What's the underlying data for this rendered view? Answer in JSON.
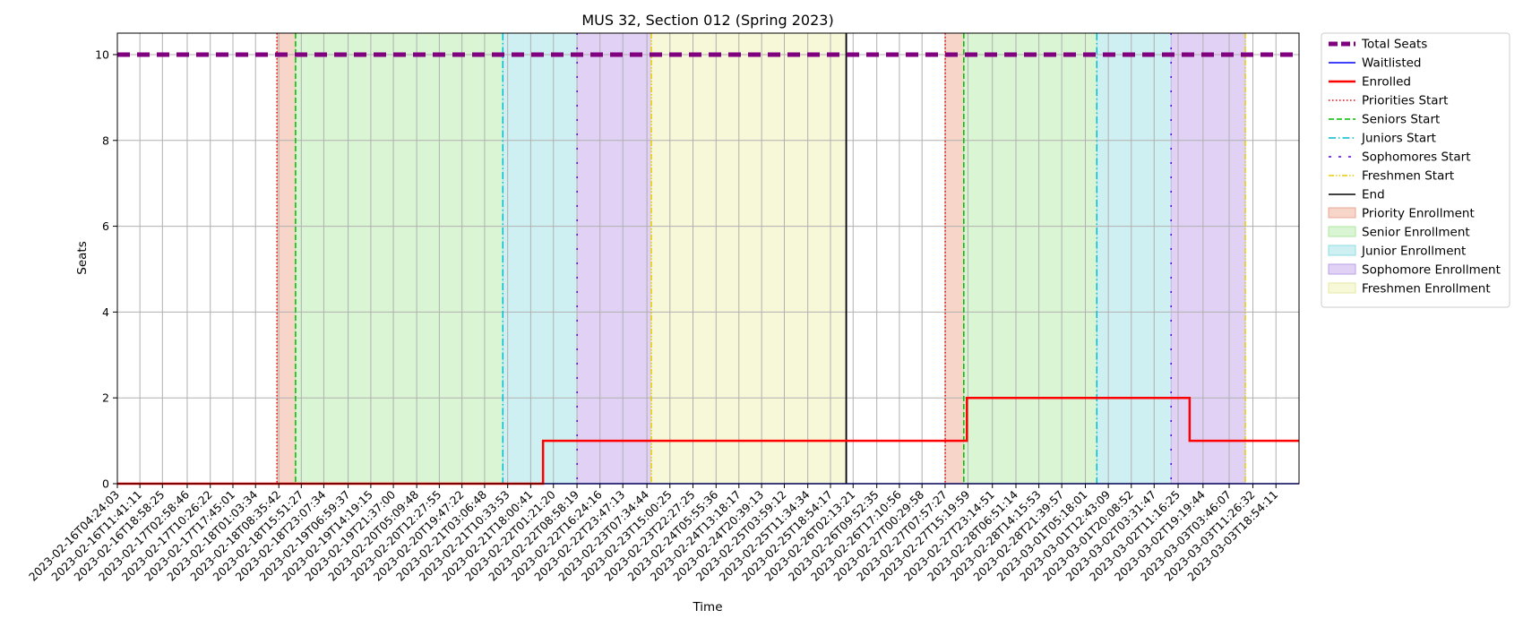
{
  "chart_data": {
    "type": "line",
    "title": "MUS 32, Section 012 (Spring 2023)",
    "xlabel": "Time",
    "ylabel": "Seats",
    "x_scale": "time",
    "xlim": [
      "2023-02-16T04:24:03",
      "2023-03-04T02:21:40"
    ],
    "ylim": [
      0,
      10.5
    ],
    "yticks": [
      0,
      2,
      4,
      6,
      8,
      10
    ],
    "grid": true,
    "legend_position": "outside-right-top",
    "xtick_labels": [
      "2023-02-16T04:24:03",
      "2023-02-16T11:41:11",
      "2023-02-16T18:58:25",
      "2023-02-17T02:58:46",
      "2023-02-17T10:26:22",
      "2023-02-17T17:45:01",
      "2023-02-18T01:03:34",
      "2023-02-18T08:35:42",
      "2023-02-18T15:51:27",
      "2023-02-18T23:07:34",
      "2023-02-19T06:59:37",
      "2023-02-19T14:19:15",
      "2023-02-19T21:37:00",
      "2023-02-20T05:09:48",
      "2023-02-20T12:27:55",
      "2023-02-20T19:47:22",
      "2023-02-21T03:06:48",
      "2023-02-21T10:33:53",
      "2023-02-21T18:00:41",
      "2023-02-22T01:21:20",
      "2023-02-22T08:58:19",
      "2023-02-22T16:24:16",
      "2023-02-22T23:47:13",
      "2023-02-23T07:34:44",
      "2023-02-23T15:00:25",
      "2023-02-23T22:27:25",
      "2023-02-24T05:55:36",
      "2023-02-24T13:18:17",
      "2023-02-24T20:39:13",
      "2023-02-25T03:59:12",
      "2023-02-25T11:34:34",
      "2023-02-25T18:54:17",
      "2023-02-26T02:13:21",
      "2023-02-26T09:52:35",
      "2023-02-26T17:10:56",
      "2023-02-27T00:29:58",
      "2023-02-27T07:57:27",
      "2023-02-27T15:19:59",
      "2023-02-27T23:14:51",
      "2023-02-28T06:51:14",
      "2023-02-28T14:15:53",
      "2023-02-28T21:39:57",
      "2023-03-01T05:18:01",
      "2023-03-01T12:43:09",
      "2023-03-01T20:08:52",
      "2023-03-02T03:31:47",
      "2023-03-02T11:16:25",
      "2023-03-02T19:19:44",
      "2023-03-03T03:46:07",
      "2023-03-03T11:26:32",
      "2023-03-03T18:54:11"
    ],
    "series": [
      {
        "name": "Total Seats",
        "color": "#800080",
        "style": "dashed-thick",
        "points": [
          [
            "2023-02-16T04:24:03",
            10
          ],
          [
            "2023-03-04T02:21:40",
            10
          ]
        ]
      },
      {
        "name": "Waitlisted",
        "color": "#0000ff",
        "style": "solid",
        "points": [
          [
            "2023-02-16T04:24:03",
            0
          ],
          [
            "2023-03-04T02:21:40",
            0
          ]
        ]
      },
      {
        "name": "Enrolled",
        "color": "#ff0000",
        "style": "step",
        "points": [
          [
            "2023-02-16T04:24:03",
            0
          ],
          [
            "2023-02-21T22:00:00",
            1
          ],
          [
            "2023-02-27T15:00:00",
            2
          ],
          [
            "2023-03-02T15:00:00",
            1
          ],
          [
            "2023-03-04T02:21:40",
            1
          ]
        ]
      }
    ],
    "vertical_lines": [
      {
        "name": "Priorities Start",
        "color": "#ff0000",
        "style": "dotted",
        "x": [
          "2023-02-18T08:00:00",
          "2023-02-27T08:00:00"
        ]
      },
      {
        "name": "Seniors Start",
        "color": "#00bb00",
        "style": "dashed",
        "x": [
          "2023-02-18T14:00:00",
          "2023-02-27T14:00:00"
        ]
      },
      {
        "name": "Juniors Start",
        "color": "#00bcd4",
        "style": "dashdot",
        "x": [
          "2023-02-21T09:00:00",
          "2023-03-01T09:00:00"
        ]
      },
      {
        "name": "Sophomores Start",
        "color": "#5500dd",
        "style": "loosedash",
        "x": [
          "2023-02-22T09:00:00",
          "2023-03-02T09:00:00"
        ]
      },
      {
        "name": "Freshmen Start",
        "color": "#e6cc00",
        "style": "dashdotdot",
        "x": [
          "2023-02-23T09:00:00",
          "2023-03-03T09:00:00"
        ]
      },
      {
        "name": "End",
        "color": "#000000",
        "style": "solid",
        "x": [
          "2023-02-26T00:00:00"
        ]
      }
    ],
    "spans": [
      {
        "name": "Priority Enrollment",
        "color": "#f7d5c9",
        "edge": "#e8a894",
        "ranges": [
          [
            "2023-02-18T08:00:00",
            "2023-02-18T14:00:00"
          ],
          [
            "2023-02-27T08:00:00",
            "2023-02-27T14:00:00"
          ]
        ]
      },
      {
        "name": "Senior Enrollment",
        "color": "#daf5d3",
        "edge": "#aee6a2",
        "ranges": [
          [
            "2023-02-18T14:00:00",
            "2023-02-21T09:00:00"
          ],
          [
            "2023-02-27T14:00:00",
            "2023-03-01T09:00:00"
          ]
        ]
      },
      {
        "name": "Junior Enrollment",
        "color": "#cff0f2",
        "edge": "#8fdde3",
        "ranges": [
          [
            "2023-02-21T09:00:00",
            "2023-02-22T09:00:00"
          ],
          [
            "2023-03-01T09:00:00",
            "2023-03-02T09:00:00"
          ]
        ]
      },
      {
        "name": "Sophomore Enrollment",
        "color": "#e1d2f5",
        "edge": "#b9a1e6",
        "ranges": [
          [
            "2023-02-22T09:00:00",
            "2023-02-23T09:00:00"
          ],
          [
            "2023-03-02T09:00:00",
            "2023-03-03T09:00:00"
          ]
        ]
      },
      {
        "name": "Freshmen Enrollment",
        "color": "#f7f8d7",
        "edge": "#e6e7a3",
        "ranges": [
          [
            "2023-02-23T09:00:00",
            "2023-02-26T00:00:00"
          ]
        ]
      }
    ],
    "legend": [
      "Total Seats",
      "Waitlisted",
      "Enrolled",
      "Priorities Start",
      "Seniors Start",
      "Juniors Start",
      "Sophomores Start",
      "Freshmen Start",
      "End",
      "Priority Enrollment",
      "Senior Enrollment",
      "Junior Enrollment",
      "Sophomore Enrollment",
      "Freshmen Enrollment"
    ]
  }
}
